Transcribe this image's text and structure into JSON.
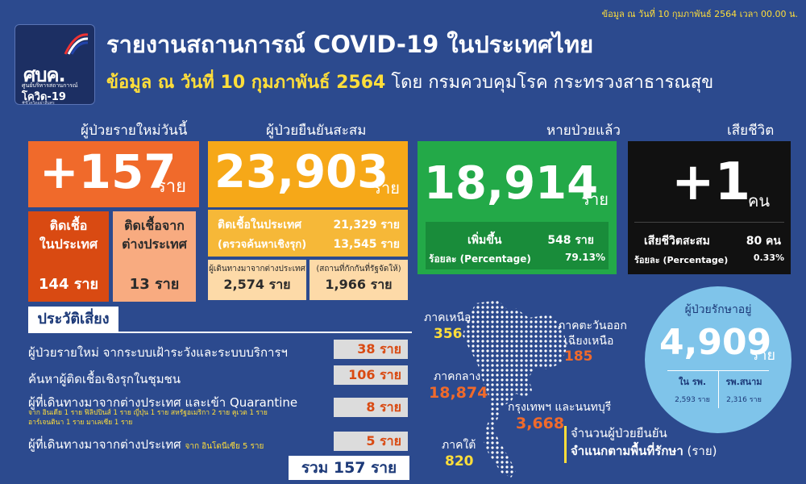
{
  "header": {
    "meta": "ข้อมูล ณ วันที่ 10 กุมภาพันธ์ 2564 เวลา 00.00 น.",
    "title": "รายงานสถานการณ์ COVID-19 ในประเทศไทย",
    "subtitle_highlight": "ข้อมูล ณ วันที่ 10 กุมภาพันธ์ 2564",
    "subtitle_rest": "โดย กรมควบคุมโรค กระทรวงสาธารณสุข"
  },
  "logo": {
    "main": "ศบค.",
    "sub1": "ศูนย์บริหารสถานการณ์",
    "sub2": "โควิด-19",
    "sub3": "#ซีโควิดอย่าลืมศร"
  },
  "new_cases": {
    "label": "ผู้ป่วยรายใหม่วันนี้",
    "value": "+157",
    "unit": "ราย",
    "domestic": {
      "label1": "ติดเชื้อ",
      "label2": "ในประเทศ",
      "value": "144 ราย"
    },
    "abroad": {
      "label1": "ติดเชื้อจาก",
      "label2": "ต่างประเทศ",
      "value": "13 ราย"
    }
  },
  "cumulative": {
    "label": "ผู้ป่วยยืนยันสะสม",
    "value": "23,903",
    "unit": "ราย",
    "domestic_label": "ติดเชื้อในประเทศ",
    "domestic_value": "21,329 ราย",
    "active_label": "(ตรวจค้นหาเชิงรุก)",
    "active_value": "13,545 ราย",
    "traveler_label": "ผู้เดินทางมาจากต่างประเทศ",
    "traveler_value": "2,574 ราย",
    "quarantine_label": "(สถานที่กักกันที่รัฐจัดให้)",
    "quarantine_value": "1,966 ราย"
  },
  "recovered": {
    "label": "หายป่วยแล้ว",
    "value": "18,914",
    "unit": "ราย",
    "increase_label": "เพิ่มขึ้น",
    "increase_value": "548 ราย",
    "pct_label": "ร้อยละ (Percentage)",
    "pct_value": "79.13%"
  },
  "deaths": {
    "label": "เสียชีวิต",
    "value": "+1",
    "unit": "คน",
    "cum_label": "เสียชีวิตสะสม",
    "cum_value": "80 คน",
    "pct_label": "ร้อยละ (Percentage)",
    "pct_value": "0.33%"
  },
  "risk": {
    "title": "ประวัติเสี่ยง",
    "items": [
      {
        "label": "ผู้ป่วยรายใหม่ จากระบบเฝ้าระวังและระบบบริการฯ",
        "value": "38 ราย"
      },
      {
        "label": "ค้นหาผู้ติดเชื้อเชิงรุกในชุมชน",
        "value": "106 ราย"
      },
      {
        "label": "ผู้ที่เดินทางมาจากต่างประเทศ และเข้า Quarantine",
        "note1": "จาก อินเดีย 1 ราย ฟิลิปปินส์ 1 ราย ญี่ปุ่น 1 ราย สหรัฐอเมริกา 2 ราย คูเวต 1 ราย",
        "note2": "อาร์เจนตินา 1 ราย มาเลเซีย 1 ราย",
        "value": "8 ราย"
      },
      {
        "label": "ผู้ที่เดินทางมาจากต่างประเทศ",
        "note1": "จาก อินโดนีเซีย 5 ราย",
        "value": "5 ราย"
      }
    ],
    "total": "รวม 157 ราย"
  },
  "regions": [
    {
      "name": "ภาคเหนือ",
      "value": "356"
    },
    {
      "name": "ภาคตะวันออก",
      "name2": "เฉียงเหนือ",
      "value": "185"
    },
    {
      "name": "ภาคกลาง",
      "value": "18,874"
    },
    {
      "name": "กรุงเทพฯ และนนทบุรี",
      "value": "3,668"
    },
    {
      "name": "ภาคใต้",
      "value": "820"
    }
  ],
  "map_caption": {
    "line1": "จำนวนผู้ป่วยยืนยัน",
    "line2_bold": "จำแนกตามพื้นที่รักษา",
    "line2_rest": " (ราย)"
  },
  "treating": {
    "label": "ผู้ป่วยรักษาอยู่",
    "value": "4,909",
    "unit": "ราย",
    "hospital_label": "ใน รพ.",
    "hospital_value": "2,593 ราย",
    "field_label": "รพ.สนาม",
    "field_value": "2,316 ราย"
  },
  "colors": {
    "background": "#2c4a8e",
    "new_cases": "#f06a2b",
    "cumulative": "#f6a818",
    "recovered": "#23a948",
    "deaths": "#111111",
    "treating": "#7fc4ea",
    "highlight": "#ffde3a",
    "map_dots": "#ffffff"
  }
}
